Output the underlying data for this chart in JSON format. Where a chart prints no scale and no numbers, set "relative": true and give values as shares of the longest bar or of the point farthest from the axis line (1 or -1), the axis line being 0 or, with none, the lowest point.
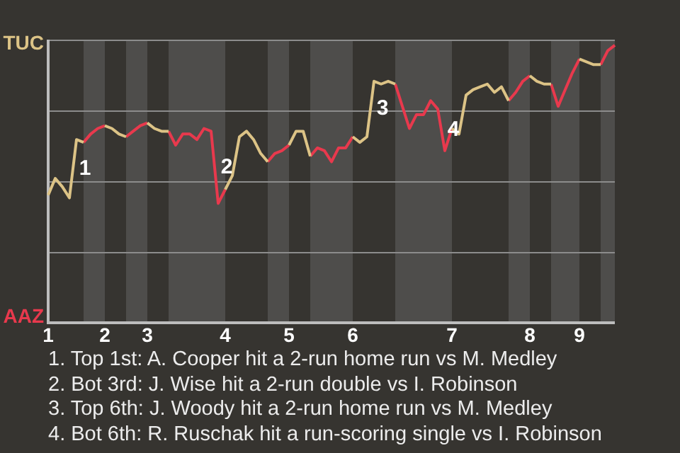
{
  "chart_data": {
    "type": "line",
    "relative": true,
    "categories": [
      "1",
      null,
      null,
      null,
      null,
      null,
      null,
      null,
      "2",
      null,
      null,
      null,
      null,
      null,
      "3",
      null,
      null,
      null,
      null,
      null,
      null,
      null,
      null,
      null,
      null,
      "4",
      null,
      null,
      null,
      null,
      null,
      null,
      null,
      null,
      "5",
      null,
      null,
      null,
      null,
      null,
      null,
      null,
      null,
      "6",
      null,
      null,
      null,
      null,
      null,
      null,
      null,
      null,
      null,
      null,
      null,
      null,
      null,
      "7",
      null,
      null,
      null,
      null,
      null,
      null,
      null,
      null,
      null,
      null,
      "8",
      null,
      null,
      null,
      null,
      null,
      null,
      "9",
      null,
      null,
      null,
      null,
      null
    ],
    "ref_lines": [
      {
        "axis": "y",
        "value": 0.255,
        "color": "#8c8c8c"
      },
      {
        "axis": "y",
        "value": 0.51,
        "color": "#8c8c8c"
      },
      {
        "axis": "y",
        "value": 0.765,
        "color": "#8c8c8c"
      }
    ],
    "legend": false,
    "marker": "none",
    "line_style": "solid",
    "series": [
      {
        "color": "#dcc386",
        "values": [
          0.46,
          0.52,
          0.49,
          0.45,
          0.66,
          0.65,
          null,
          null,
          0.71,
          0.7,
          0.68,
          0.67,
          null,
          null,
          0.72,
          0.7,
          0.69,
          0.69,
          null,
          null,
          null,
          null,
          null,
          null,
          null,
          0.48,
          0.53,
          0.67,
          0.69,
          0.66,
          0.61,
          0.58,
          null,
          null,
          0.64,
          0.69,
          0.69,
          0.6,
          null,
          null,
          null,
          null,
          null,
          0.67,
          0.65,
          0.67,
          0.87,
          0.86,
          0.87,
          0.86,
          null,
          null,
          null,
          null,
          null,
          null,
          null,
          0.7,
          0.68,
          0.82,
          0.84,
          0.85,
          0.86,
          0.83,
          0.85,
          0.8,
          null,
          null,
          0.89,
          0.87,
          0.86,
          0.86,
          null,
          null,
          null,
          0.95,
          0.94,
          0.93,
          0.93,
          null,
          null
        ]
      },
      {
        "color": "#e8394d",
        "values": [
          null,
          null,
          null,
          null,
          null,
          0.65,
          0.68,
          0.7,
          0.71,
          null,
          null,
          0.67,
          0.69,
          0.71,
          0.72,
          null,
          null,
          0.69,
          0.64,
          0.68,
          0.68,
          0.66,
          0.7,
          0.69,
          0.43,
          0.48,
          null,
          null,
          null,
          null,
          null,
          0.58,
          0.61,
          0.62,
          0.64,
          null,
          null,
          0.6,
          0.63,
          0.62,
          0.58,
          0.63,
          0.63,
          0.67,
          null,
          null,
          null,
          null,
          null,
          0.86,
          0.78,
          0.7,
          0.75,
          0.75,
          0.8,
          0.77,
          0.62,
          0.7,
          null,
          null,
          null,
          null,
          null,
          null,
          null,
          0.8,
          0.83,
          0.87,
          0.89,
          null,
          null,
          0.86,
          0.78,
          0.84,
          0.9,
          0.95,
          null,
          null,
          0.93,
          0.98,
          1
        ]
      }
    ],
    "annotations": [
      "1",
      "2",
      "3",
      "4",
      "TUC",
      "AAZ",
      "1. Top 1st: A. Cooper hit a 2-run home run vs M. Medley",
      "2. Bot 3rd: J. Wise hit a 2-run double vs I. Robinson",
      "3. Top 6th: J. Woody hit a 2-run home run vs M. Medley",
      "4. Bot 6th: R. Ruschak hit a run-scoring single vs I. Robinson"
    ]
  }
}
